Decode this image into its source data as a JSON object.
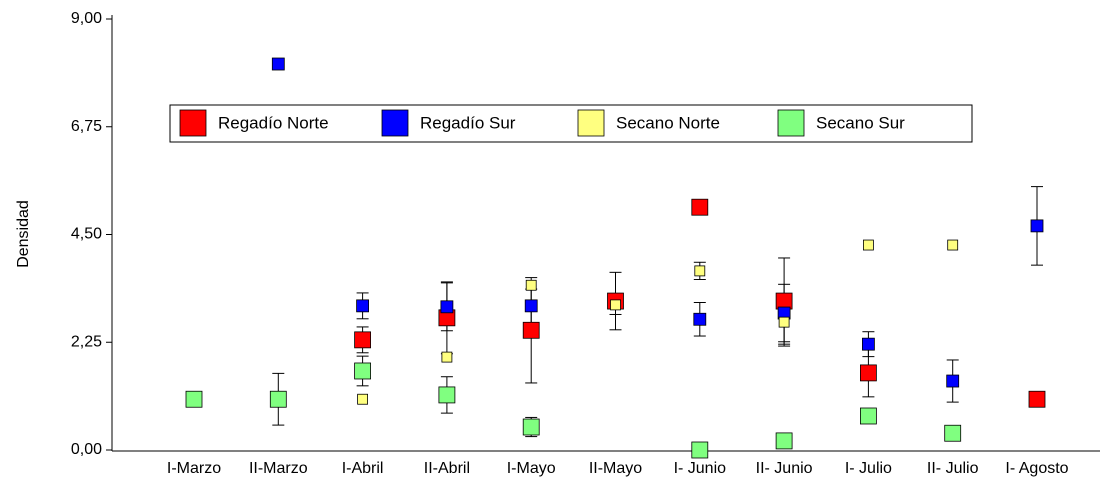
{
  "chart_data": {
    "type": "scatter",
    "y_label": "Densidad",
    "categories": [
      "I-Marzo",
      "II-Marzo",
      "I-Abril",
      "II-Abril",
      "I-Mayo",
      "II-Mayo",
      "I- Junio",
      "II- Junio",
      "I- Julio",
      "II- Julio",
      "I- Agosto"
    ],
    "ylim": [
      0,
      9
    ],
    "yticks": [
      {
        "value": 0,
        "label": "0,00"
      },
      {
        "value": 2.25,
        "label": "2,25"
      },
      {
        "value": 4.5,
        "label": "4,50"
      },
      {
        "value": 6.75,
        "label": "6,75"
      },
      {
        "value": 9,
        "label": "9,00"
      }
    ],
    "series": [
      {
        "name": "Regadío Norte",
        "color": "#ff0000",
        "values": [
          null,
          null,
          2.3,
          2.76,
          2.5,
          3.11,
          5.07,
          3.11,
          1.61,
          null,
          1.06
        ],
        "errors": [
          null,
          null,
          0.27,
          0.75,
          1.1,
          0.6,
          null,
          0.9,
          0.5,
          null,
          null
        ]
      },
      {
        "name": "Regadío Sur",
        "color": "#0000ff",
        "values": [
          null,
          8.06,
          3.01,
          2.99,
          3.01,
          null,
          2.73,
          2.86,
          2.21,
          1.44,
          4.68
        ],
        "errors": [
          null,
          null,
          0.27,
          0.5,
          0.35,
          null,
          0.35,
          0.6,
          0.26,
          0.44,
          0.82
        ]
      },
      {
        "name": "Secano Norte",
        "color": "#ffff80",
        "values": [
          null,
          null,
          1.06,
          1.94,
          3.44,
          3.03,
          3.74,
          2.67,
          4.28,
          4.28,
          null
        ],
        "errors": [
          null,
          null,
          null,
          null,
          null,
          0.2,
          0.18,
          0.5,
          null,
          null,
          null
        ]
      },
      {
        "name": "Secano Sur",
        "color": "#80ff80",
        "values": [
          1.06,
          1.06,
          1.65,
          1.15,
          0.48,
          null,
          0.0,
          0.19,
          0.71,
          0.35,
          null
        ],
        "errors": [
          null,
          0.54,
          0.31,
          0.38,
          0.2,
          null,
          null,
          null,
          null,
          null,
          null
        ]
      }
    ]
  }
}
